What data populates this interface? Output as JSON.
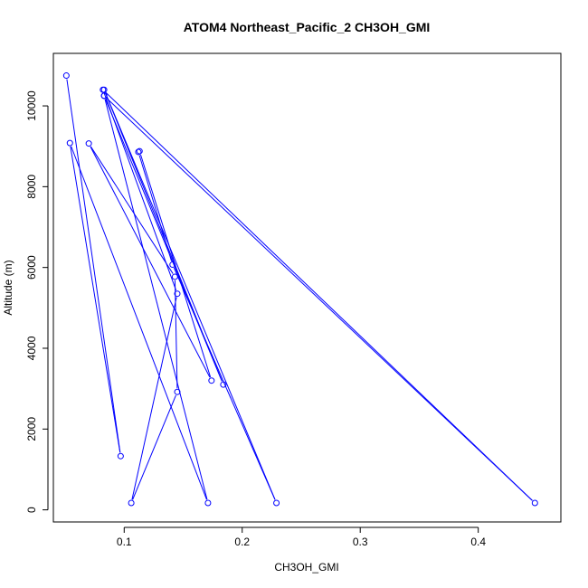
{
  "chart_data": {
    "type": "line",
    "title": "ATOM4 Northeast_Pacific_2 CH3OH_GMI",
    "xlabel": "CH3OH_GMI",
    "ylabel": "Altitude (m)",
    "xlim": [
      0.04,
      0.47
    ],
    "ylim": [
      -300,
      11300
    ],
    "xticks": [
      0.1,
      0.2,
      0.3,
      0.4
    ],
    "xtick_labels": [
      "0.1",
      "0.2",
      "0.3",
      "0.4"
    ],
    "yticks": [
      0,
      2000,
      4000,
      6000,
      8000,
      10000
    ],
    "ytick_labels": [
      "0",
      "2000",
      "4000",
      "6000",
      "8000",
      "10000"
    ],
    "grid": false,
    "marker": "open-circle",
    "color": "#0000ff",
    "series": [
      {
        "x": [
          0.051,
          0.097,
          0.054,
          0.171,
          0.083,
          0.448,
          0.082,
          0.145,
          0.106,
          0.145,
          0.143,
          0.07,
          0.174,
          0.113,
          0.112,
          0.141,
          0.229,
          0.083,
          0.184,
          0.083
        ],
        "y": [
          10750,
          1330,
          9080,
          170,
          10250,
          170,
          10400,
          5350,
          170,
          2920,
          5770,
          9070,
          3200,
          8880,
          8860,
          6070,
          170,
          10400,
          3100,
          10250
        ]
      }
    ]
  }
}
